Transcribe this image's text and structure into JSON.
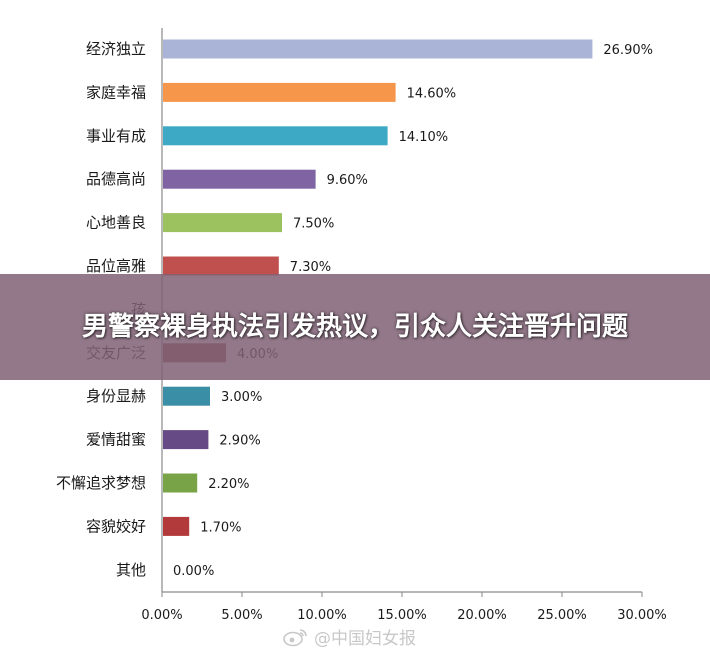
{
  "chart_data": {
    "type": "bar",
    "orientation": "horizontal",
    "categories": [
      "经济独立",
      "家庭幸福",
      "事业有成",
      "品德高尚",
      "心地善良",
      "品位高雅",
      "孩",
      "交友广泛",
      "身份显赫",
      "爱情甜蜜",
      "不懈追求梦想",
      "容貌姣好",
      "其他"
    ],
    "values": [
      26.9,
      14.6,
      14.1,
      9.6,
      7.5,
      7.3,
      null,
      4.0,
      3.0,
      2.9,
      2.2,
      1.7,
      0.0
    ],
    "value_labels": [
      "26.90%",
      "14.60%",
      "14.10%",
      "9.60%",
      "7.50%",
      "7.30%",
      "",
      "4.00%",
      "3.00%",
      "2.90%",
      "2.20%",
      "1.70%",
      "0.00%"
    ],
    "colors": [
      "#a9b4d6",
      "#f6964b",
      "#3ea9c4",
      "#7f63a3",
      "#9cc25f",
      "#c0504d",
      "#8c6b7e",
      "#8c4a4a",
      "#3a8ea6",
      "#664a86",
      "#78a447",
      "#b23a3a",
      "#888888"
    ],
    "x_ticks": [
      "0.00%",
      "5.00%",
      "10.00%",
      "15.00%",
      "20.00%",
      "25.00%",
      "30.00%"
    ],
    "xlim": [
      0,
      30
    ],
    "grid": false,
    "legend": "none"
  },
  "overlay": {
    "title": "男警察裸身执法引发热议，引众人关注晋升问题"
  },
  "watermark": {
    "text": "@中国妇女报",
    "icon": "weibo-icon"
  }
}
